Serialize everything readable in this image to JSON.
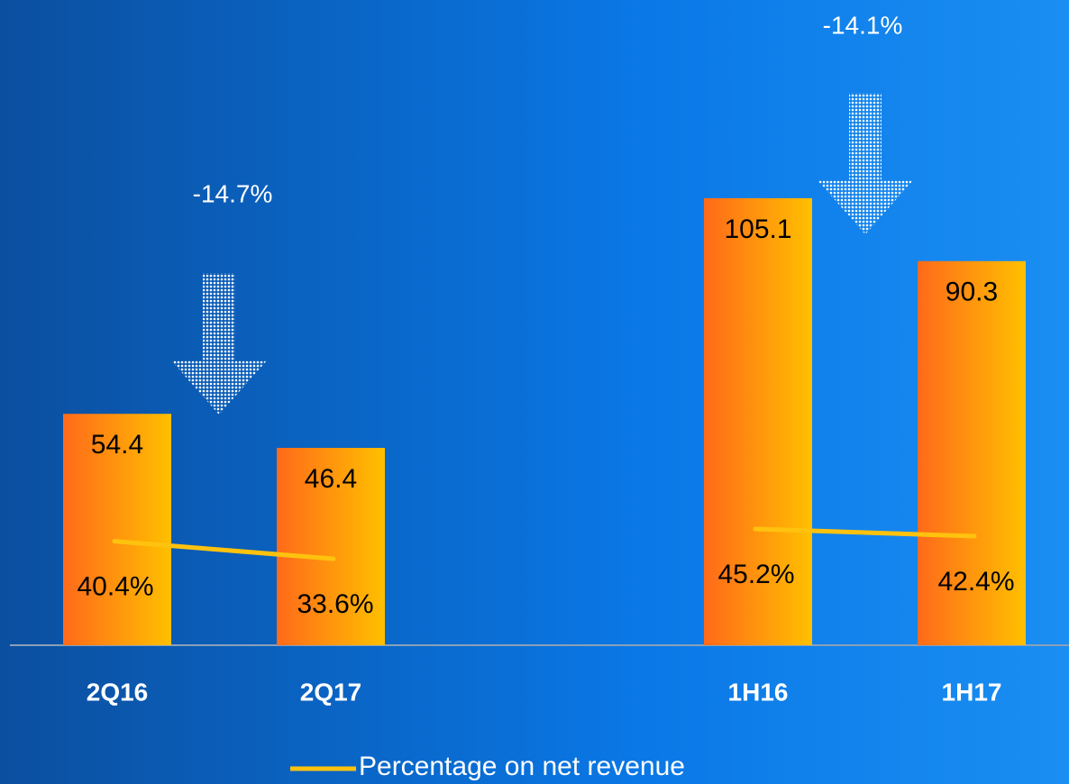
{
  "chart_data": {
    "type": "bar",
    "categories": [
      "2Q16",
      "2Q17",
      null,
      "1H16",
      "1H17"
    ],
    "series": [
      {
        "color": "#ff6a1a",
        "values": [
          54.4,
          46.4,
          null,
          105.1,
          90.3
        ]
      },
      {
        "name": "Percentage on net revenue",
        "type": "line",
        "axis": "y2",
        "color": "#ffc20e",
        "values": [
          40.4,
          33.6,
          null,
          45.2,
          42.4
        ],
        "value_labels": [
          "40.4%",
          "33.6%",
          null,
          "45.2%",
          "42.4%"
        ]
      }
    ],
    "ylim": [
      0,
      150
    ],
    "y2lim": [
      0,
      248
    ],
    "annotations": [
      "-14.7%",
      "-14.1%"
    ]
  }
}
